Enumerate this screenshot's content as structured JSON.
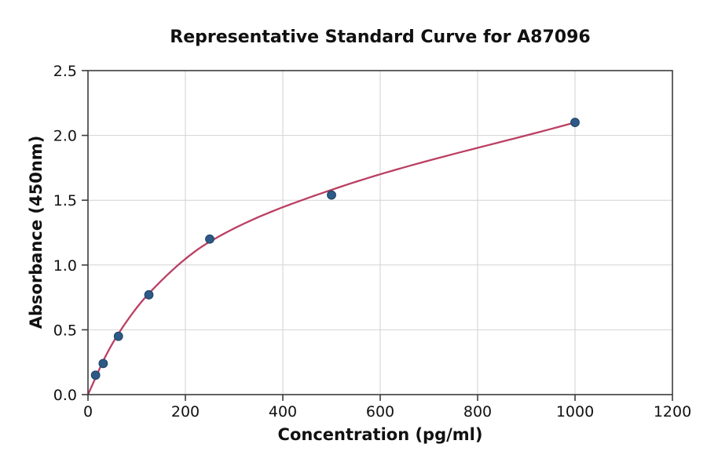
{
  "chart_data": {
    "type": "scatter",
    "title": "Representative Standard Curve for A87096",
    "xlabel": "Concentration (pg/ml)",
    "ylabel": "Absorbance (450nm)",
    "xlim": [
      0,
      1200
    ],
    "ylim": [
      0,
      2.5
    ],
    "x_ticks": [
      0,
      200,
      400,
      600,
      800,
      1000,
      1200
    ],
    "y_ticks": [
      0,
      0.5,
      1.0,
      1.5,
      2.0,
      2.5
    ],
    "grid": true,
    "legend_position": "none",
    "points": [
      {
        "x": 15.6,
        "y": 0.15
      },
      {
        "x": 31.25,
        "y": 0.24
      },
      {
        "x": 62.5,
        "y": 0.45
      },
      {
        "x": 125,
        "y": 0.77
      },
      {
        "x": 250,
        "y": 1.2
      },
      {
        "x": 500,
        "y": 1.54
      },
      {
        "x": 1000,
        "y": 2.1
      }
    ],
    "fit_curve_points": [
      {
        "x": 0,
        "y": 0
      },
      {
        "x": 15.6,
        "y": 0.13
      },
      {
        "x": 31.25,
        "y": 0.26
      },
      {
        "x": 62.5,
        "y": 0.47
      },
      {
        "x": 125,
        "y": 0.78
      },
      {
        "x": 250,
        "y": 1.18
      },
      {
        "x": 500,
        "y": 1.58
      },
      {
        "x": 1000,
        "y": 2.1
      }
    ]
  },
  "colors": {
    "curve": "#bb3f63",
    "marker_fill": "#2d5a87",
    "marker_edge": "#1e4265",
    "grid": "#d2d2d2",
    "spine": "#3c3c3c",
    "text": "#111111",
    "background": "#ffffff"
  }
}
